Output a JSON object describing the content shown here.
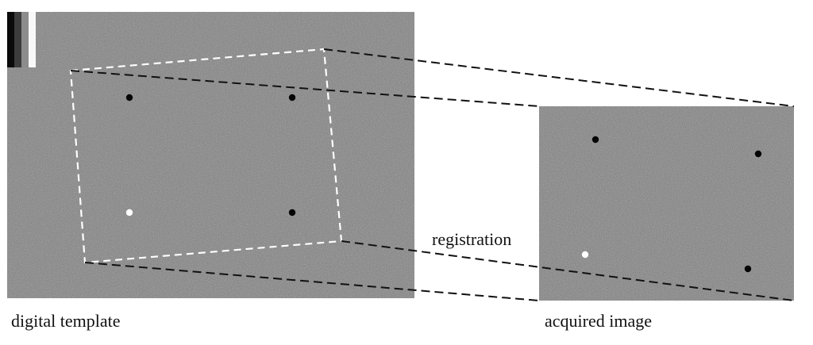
{
  "captions": {
    "template": "digital template",
    "acquired": "acquired image",
    "registration": "registration"
  },
  "colors": {
    "noise_background": "#808080",
    "dashed_outline": "#ffffff",
    "connector_line": "#111111",
    "marker_dark": "#050505",
    "marker_light": "#ffffff"
  },
  "template_image": {
    "gray_scale_swatches": [
      "#0a0a0a",
      "#3c3c3c",
      "#8c8c8c",
      "#f8f8f8"
    ],
    "markers": [
      {
        "tone": "dark"
      },
      {
        "tone": "dark"
      },
      {
        "tone": "light"
      },
      {
        "tone": "dark"
      }
    ]
  },
  "acquired_image": {
    "markers": [
      {
        "tone": "dark"
      },
      {
        "tone": "dark"
      },
      {
        "tone": "light"
      },
      {
        "tone": "dark"
      }
    ]
  }
}
